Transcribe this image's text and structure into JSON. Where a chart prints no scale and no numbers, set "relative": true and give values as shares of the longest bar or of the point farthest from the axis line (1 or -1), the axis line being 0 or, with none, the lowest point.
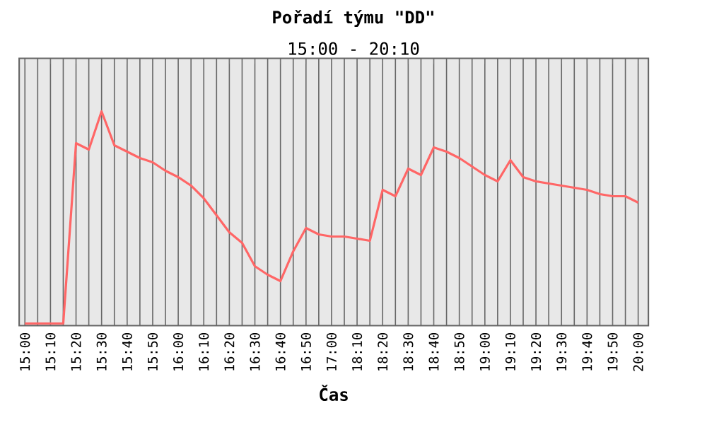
{
  "chart_data": {
    "type": "line",
    "title": "Pořadí týmu \"DD\"",
    "subtitle": "15:00 - 20:10",
    "xlabel": "Čas",
    "categories": [
      "15:00",
      null,
      "15:10",
      null,
      "15:20",
      null,
      "15:30",
      null,
      "15:40",
      null,
      "15:50",
      null,
      "16:00",
      null,
      "16:10",
      null,
      "16:20",
      null,
      "16:30",
      null,
      "16:40",
      null,
      "16:50",
      null,
      "17:00",
      null,
      "18:10",
      null,
      "18:20",
      null,
      "18:30",
      null,
      "18:40",
      null,
      "18:50",
      null,
      "19:00",
      null,
      "19:10",
      null,
      "19:20",
      null,
      "19:30",
      null,
      "19:40",
      null,
      "19:50",
      null,
      "20:00"
    ],
    "relative": true,
    "grid": "x",
    "marker": "none",
    "line_style": "solid",
    "series": [
      {
        "color": "#ff6666",
        "values": [
          0,
          0,
          0,
          0,
          0.85,
          0.82,
          1.0,
          0.84,
          0.81,
          0.78,
          0.76,
          0.72,
          0.69,
          0.65,
          0.59,
          0.51,
          0.43,
          0.38,
          0.27,
          0.23,
          0.2,
          0.34,
          0.45,
          0.42,
          0.41,
          0.41,
          0.4,
          0.39,
          0.63,
          0.6,
          0.73,
          0.7,
          0.83,
          0.81,
          0.78,
          0.74,
          0.7,
          0.67,
          0.77,
          0.69,
          0.67,
          0.66,
          0.65,
          0.64,
          0.63,
          0.61,
          0.6,
          0.6,
          0.57
        ]
      }
    ]
  }
}
